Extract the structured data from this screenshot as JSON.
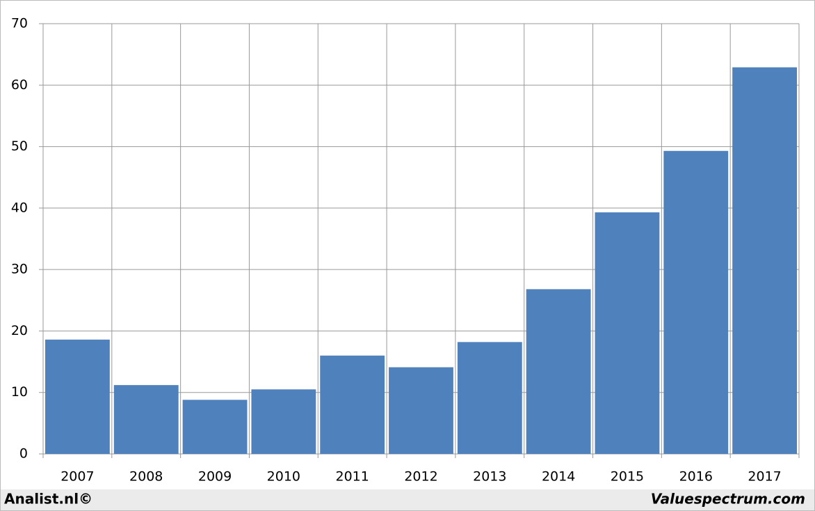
{
  "chart_data": {
    "type": "bar",
    "categories": [
      "2007",
      "2008",
      "2009",
      "2010",
      "2011",
      "2012",
      "2013",
      "2014",
      "2015",
      "2016",
      "2017"
    ],
    "values": [
      18.6,
      11.2,
      8.8,
      10.5,
      16.0,
      14.1,
      18.2,
      26.8,
      39.3,
      49.3,
      62.9
    ],
    "color": "#4f81bd",
    "ylim": [
      0,
      70
    ],
    "yticks": [
      0,
      10,
      20,
      30,
      40,
      50,
      60,
      70
    ],
    "grid": true,
    "footer_left": "Analist.nl©",
    "footer_right": "Valuespectrum.com"
  }
}
